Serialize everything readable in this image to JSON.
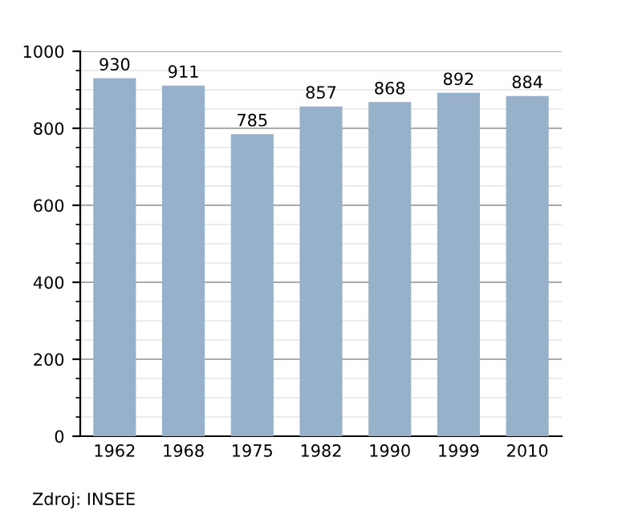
{
  "chart_data": {
    "type": "bar",
    "categories": [
      "1962",
      "1968",
      "1975",
      "1982",
      "1990",
      "1999",
      "2010"
    ],
    "values": [
      930,
      911,
      785,
      857,
      868,
      892,
      884
    ],
    "color": "#97b1cb",
    "data_labels": true,
    "ylim": [
      0,
      1000
    ],
    "yticks": [
      0,
      200,
      400,
      600,
      800,
      1000
    ],
    "grid": "y",
    "annotations": [
      "Zdroj: INSEE"
    ]
  }
}
